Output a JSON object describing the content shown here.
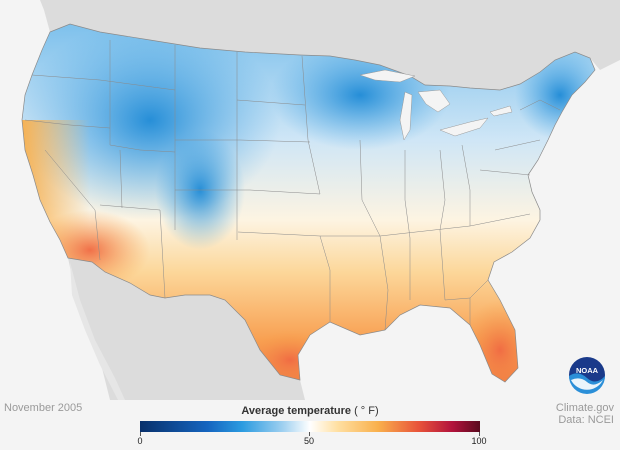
{
  "map": {
    "date_label": "November 2005",
    "legend": {
      "title": "Average temperature",
      "unit": "( ° F)",
      "scale_min": 0,
      "scale_mid": 50,
      "scale_max": 100,
      "ticks": [
        "0",
        "50",
        "100"
      ]
    },
    "credit": {
      "line1": "Climate.gov",
      "line2": "Data: NCEI"
    },
    "logo_text": "NOAA",
    "colors": {
      "cold": "#2b9be0",
      "neutral": "#ffffff",
      "warm": "#f9b04c",
      "hot": "#e8533a",
      "background": "#f4f4f4",
      "land_outside": "#dcdcdc"
    }
  }
}
